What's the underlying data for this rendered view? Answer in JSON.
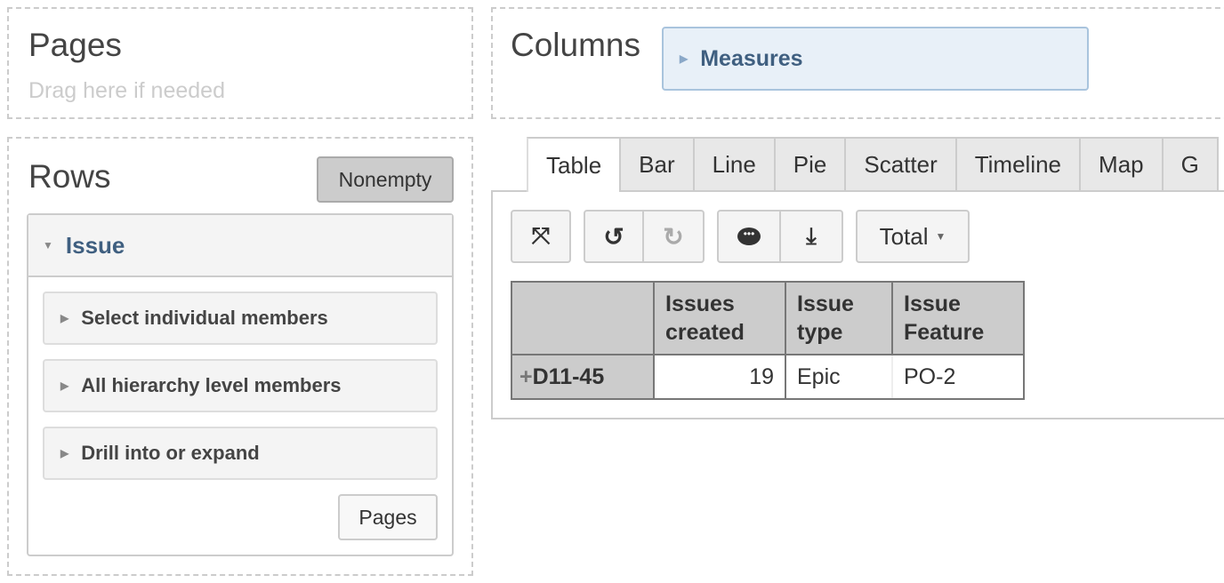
{
  "pages": {
    "title": "Pages",
    "hint": "Drag here if needed"
  },
  "columns": {
    "title": "Columns",
    "item": "Measures"
  },
  "rows": {
    "title": "Rows",
    "nonempty": "Nonempty",
    "dimension": "Issue",
    "options": [
      "Select individual members",
      "All hierarchy level members",
      "Drill into or expand"
    ],
    "pages_button": "Pages"
  },
  "tabs": [
    "Table",
    "Bar",
    "Line",
    "Pie",
    "Scatter",
    "Timeline",
    "Map",
    "G"
  ],
  "toolbar": {
    "total": "Total"
  },
  "table": {
    "headers": [
      "",
      "Issues created",
      "Issue type",
      "Issue Feature"
    ],
    "rows": [
      {
        "label": "D11-45",
        "issues_created": "19",
        "issue_type": "Epic",
        "issue_feature": "PO-2"
      }
    ]
  }
}
